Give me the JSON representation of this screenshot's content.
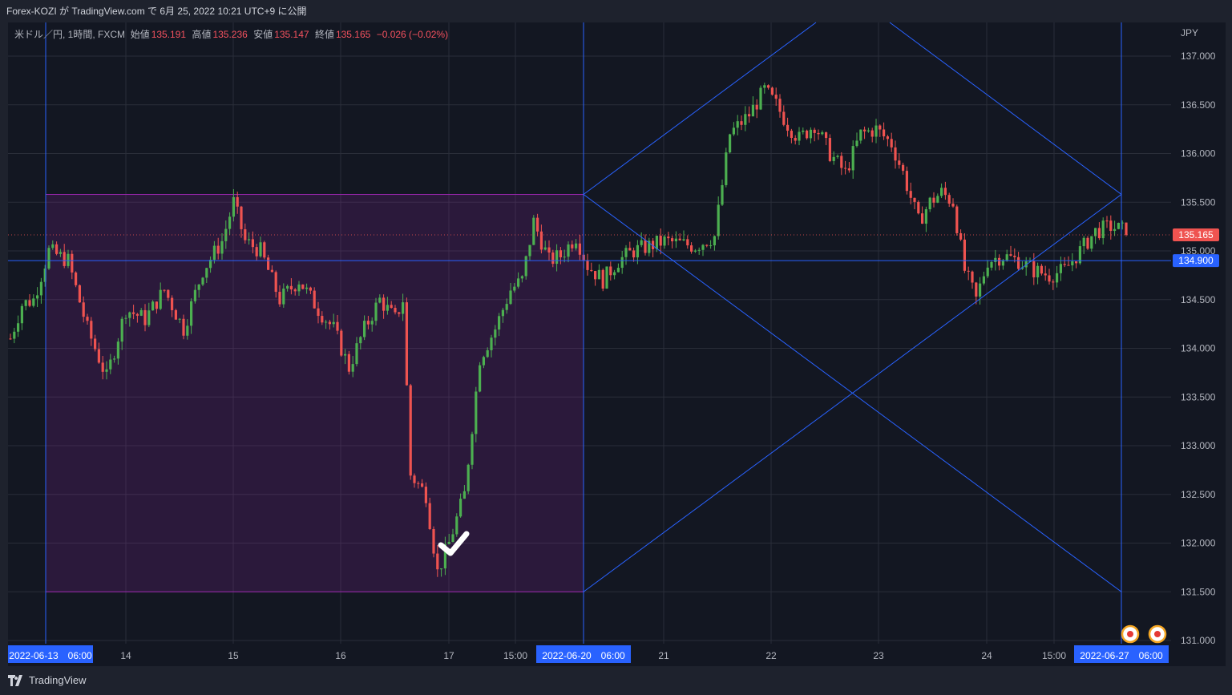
{
  "header": {
    "title": "Forex-KOZI が TradingView.com で 6月 25, 2022 10:21 UTC+9 に公開"
  },
  "legend": {
    "symbol": "米ドル／円, 1時間, FXCM",
    "open_label": "始値",
    "open": "135.191",
    "high_label": "高値",
    "high": "135.236",
    "low_label": "安値",
    "low": "135.147",
    "close_label": "終値",
    "close": "135.165",
    "change": "−0.026 (−0.02%)"
  },
  "footer": {
    "brand": "TradingView"
  },
  "colors": {
    "up": "#26a69a",
    "upCandle": "#4caf50",
    "down": "#ef5350",
    "line": "#2962ff",
    "box": "#9c27b0",
    "bg": "#131722"
  },
  "chart_data": {
    "type": "candlestick",
    "currency_label": "JPY",
    "ylim": [
      131.0,
      137.25
    ],
    "y_ticks": [
      "137.000",
      "136.500",
      "136.000",
      "135.500",
      "135.000",
      "134.500",
      "134.000",
      "133.500",
      "133.000",
      "132.500",
      "132.000",
      "131.500",
      "131.000"
    ],
    "x_ticks": [
      "14",
      "15",
      "16",
      "17",
      "15:00",
      "21",
      "22",
      "23",
      "24",
      "15:00"
    ],
    "x_markers": [
      "2022-06-13　06:00",
      "2022-06-20　06:00",
      "2022-06-27　06:00"
    ],
    "price_labels": {
      "last": "135.165",
      "hline": "134.900"
    },
    "last_price": 135.165,
    "hline_price": 134.9,
    "box": {
      "top": 135.58,
      "bottom": 131.5
    },
    "diamond": {
      "top": 137.2,
      "right": 135.58,
      "bottom": 131.5,
      "center": 133.55
    },
    "waypoints": [
      [
        0,
        134.1
      ],
      [
        3,
        134.45
      ],
      [
        6,
        134.5
      ],
      [
        10,
        135.0
      ],
      [
        15,
        134.9
      ],
      [
        20,
        134.2
      ],
      [
        25,
        133.7
      ],
      [
        30,
        134.4
      ],
      [
        35,
        134.3
      ],
      [
        40,
        134.6
      ],
      [
        45,
        134.2
      ],
      [
        50,
        134.8
      ],
      [
        55,
        135.1
      ],
      [
        58,
        135.5
      ],
      [
        61,
        135.1
      ],
      [
        65,
        135.0
      ],
      [
        70,
        134.5
      ],
      [
        75,
        134.7
      ],
      [
        80,
        134.4
      ],
      [
        84,
        134.2
      ],
      [
        88,
        133.8
      ],
      [
        92,
        134.2
      ],
      [
        96,
        134.5
      ],
      [
        100,
        134.3
      ],
      [
        102,
        134.5
      ],
      [
        104,
        132.7
      ],
      [
        108,
        132.5
      ],
      [
        111,
        131.7
      ],
      [
        114,
        132.0
      ],
      [
        118,
        132.5
      ],
      [
        122,
        133.9
      ],
      [
        126,
        134.2
      ],
      [
        130,
        134.6
      ],
      [
        133,
        134.7
      ],
      [
        136,
        135.3
      ],
      [
        140,
        134.9
      ],
      [
        143,
        134.95
      ],
      [
        147,
        135.15
      ],
      [
        150,
        134.85
      ],
      [
        154,
        134.7
      ],
      [
        158,
        134.9
      ],
      [
        162,
        135.0
      ],
      [
        170,
        135.1
      ],
      [
        178,
        135.05
      ],
      [
        183,
        135.15
      ],
      [
        187,
        136.2
      ],
      [
        192,
        136.4
      ],
      [
        196,
        136.65
      ],
      [
        199,
        136.5
      ],
      [
        202,
        136.3
      ],
      [
        205,
        136.15
      ],
      [
        209,
        136.3
      ],
      [
        213,
        136.0
      ],
      [
        217,
        135.8
      ],
      [
        221,
        136.2
      ],
      [
        225,
        136.25
      ],
      [
        229,
        136.1
      ],
      [
        232,
        135.8
      ],
      [
        236,
        135.3
      ],
      [
        239,
        135.5
      ],
      [
        242,
        135.6
      ],
      [
        245,
        135.5
      ],
      [
        248,
        134.8
      ],
      [
        251,
        134.5
      ],
      [
        254,
        134.9
      ],
      [
        258,
        134.95
      ],
      [
        262,
        134.9
      ],
      [
        266,
        134.8
      ],
      [
        270,
        134.75
      ],
      [
        274,
        134.8
      ],
      [
        278,
        135.0
      ],
      [
        282,
        135.2
      ],
      [
        286,
        135.25
      ],
      [
        290,
        135.2
      ]
    ]
  }
}
